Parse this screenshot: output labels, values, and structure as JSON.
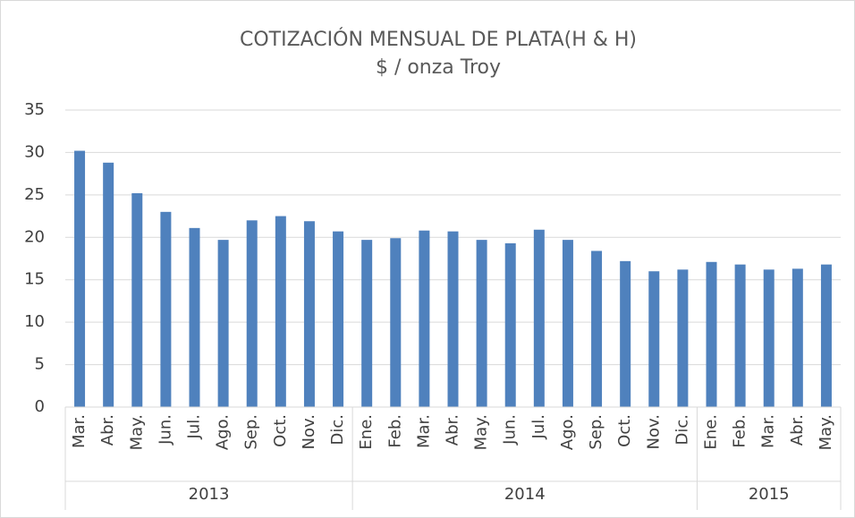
{
  "chart_data": {
    "type": "bar",
    "title": "COTIZACIÓN MENSUAL DE PLATA(H & H)",
    "subtitle": "$ / onza Troy",
    "groups": [
      {
        "name": "2013",
        "categories": [
          "Mar.",
          "Abr.",
          "May.",
          "Jun.",
          "Jul.",
          "Ago.",
          "Sep.",
          "Oct.",
          "Nov.",
          "Dic."
        ]
      },
      {
        "name": "2014",
        "categories": [
          "Ene.",
          "Feb.",
          "Mar.",
          "Abr.",
          "May.",
          "Jun.",
          "Jul.",
          "Ago.",
          "Sep.",
          "Oct.",
          "Nov.",
          "Dic."
        ]
      },
      {
        "name": "2015",
        "categories": [
          "Ene.",
          "Feb.",
          "Mar.",
          "Abr.",
          "May."
        ]
      }
    ],
    "values": [
      30.2,
      28.8,
      25.2,
      23.0,
      21.1,
      19.7,
      22.0,
      22.5,
      21.9,
      20.7,
      19.7,
      19.9,
      20.8,
      20.7,
      19.7,
      19.3,
      20.9,
      19.7,
      18.4,
      17.2,
      16.0,
      16.2,
      17.1,
      16.8,
      16.2,
      16.3,
      16.8
    ],
    "color": "#4f81bd",
    "ylim": [
      0,
      35
    ],
    "yticks": [
      0,
      5,
      10,
      15,
      20,
      25,
      30,
      35
    ],
    "grid": true
  }
}
